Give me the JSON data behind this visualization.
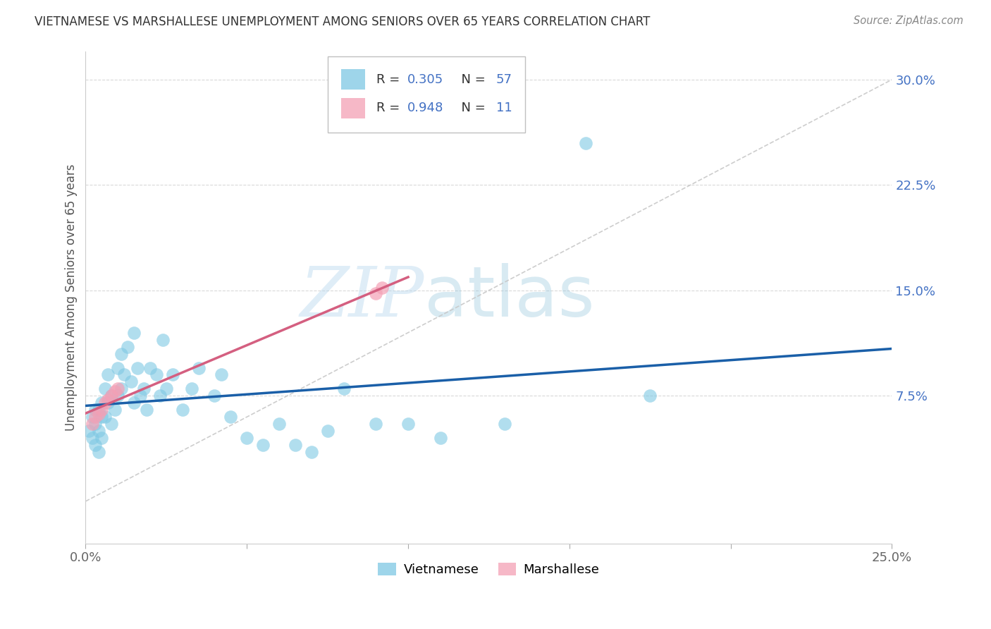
{
  "title": "VIETNAMESE VS MARSHALLESE UNEMPLOYMENT AMONG SENIORS OVER 65 YEARS CORRELATION CHART",
  "source": "Source: ZipAtlas.com",
  "ylabel": "Unemployment Among Seniors over 65 years",
  "xlim": [
    0.0,
    0.25
  ],
  "ylim": [
    -0.03,
    0.32
  ],
  "ytick_vals": [
    0.075,
    0.15,
    0.225,
    0.3
  ],
  "ytick_labels": [
    "7.5%",
    "15.0%",
    "22.5%",
    "30.0%"
  ],
  "xtick_vals": [
    0.0,
    0.05,
    0.1,
    0.15,
    0.2,
    0.25
  ],
  "xtick_labels": [
    "0.0%",
    "",
    "",
    "",
    "",
    "25.0%"
  ],
  "watermark_zip": "ZIP",
  "watermark_atlas": "atlas",
  "vietnamese_color": "#7ec8e3",
  "marshallese_color": "#f4a0b5",
  "trendline_vietnamese_color": "#1a5fa8",
  "trendline_marshallese_color": "#d45f80",
  "dashed_line_color": "#c8c8c8",
  "legend_label_color": "#4472c4",
  "tick_color": "#4472c4",
  "background_color": "#ffffff",
  "grid_color": "#d0d0d0",
  "vietnamese_x": [
    0.001,
    0.002,
    0.002,
    0.003,
    0.003,
    0.003,
    0.004,
    0.004,
    0.004,
    0.005,
    0.005,
    0.005,
    0.006,
    0.006,
    0.007,
    0.007,
    0.008,
    0.008,
    0.009,
    0.01,
    0.01,
    0.011,
    0.011,
    0.012,
    0.013,
    0.014,
    0.015,
    0.015,
    0.016,
    0.017,
    0.018,
    0.019,
    0.02,
    0.022,
    0.023,
    0.024,
    0.025,
    0.027,
    0.03,
    0.033,
    0.035,
    0.04,
    0.042,
    0.045,
    0.05,
    0.055,
    0.06,
    0.065,
    0.07,
    0.075,
    0.08,
    0.09,
    0.1,
    0.11,
    0.13,
    0.155,
    0.175
  ],
  "vietnamese_y": [
    0.05,
    0.045,
    0.06,
    0.055,
    0.04,
    0.065,
    0.035,
    0.05,
    0.065,
    0.06,
    0.045,
    0.07,
    0.08,
    0.06,
    0.09,
    0.07,
    0.055,
    0.075,
    0.065,
    0.095,
    0.075,
    0.105,
    0.08,
    0.09,
    0.11,
    0.085,
    0.12,
    0.07,
    0.095,
    0.075,
    0.08,
    0.065,
    0.095,
    0.09,
    0.075,
    0.115,
    0.08,
    0.09,
    0.065,
    0.08,
    0.095,
    0.075,
    0.09,
    0.06,
    0.045,
    0.04,
    0.055,
    0.04,
    0.035,
    0.05,
    0.08,
    0.055,
    0.055,
    0.045,
    0.055,
    0.255,
    0.075
  ],
  "marshallese_x": [
    0.002,
    0.003,
    0.004,
    0.005,
    0.006,
    0.007,
    0.008,
    0.009,
    0.01,
    0.09,
    0.092
  ],
  "marshallese_y": [
    0.055,
    0.06,
    0.062,
    0.065,
    0.07,
    0.072,
    0.075,
    0.078,
    0.08,
    0.148,
    0.152
  ],
  "viet_trend_x0": 0.0,
  "viet_trend_y0": 0.055,
  "viet_trend_x1": 0.25,
  "viet_trend_y1": 0.135,
  "marsh_trend_x0": 0.0,
  "marsh_trend_y0": 0.05,
  "marsh_trend_x1": 0.1,
  "marsh_trend_y1": 0.155
}
